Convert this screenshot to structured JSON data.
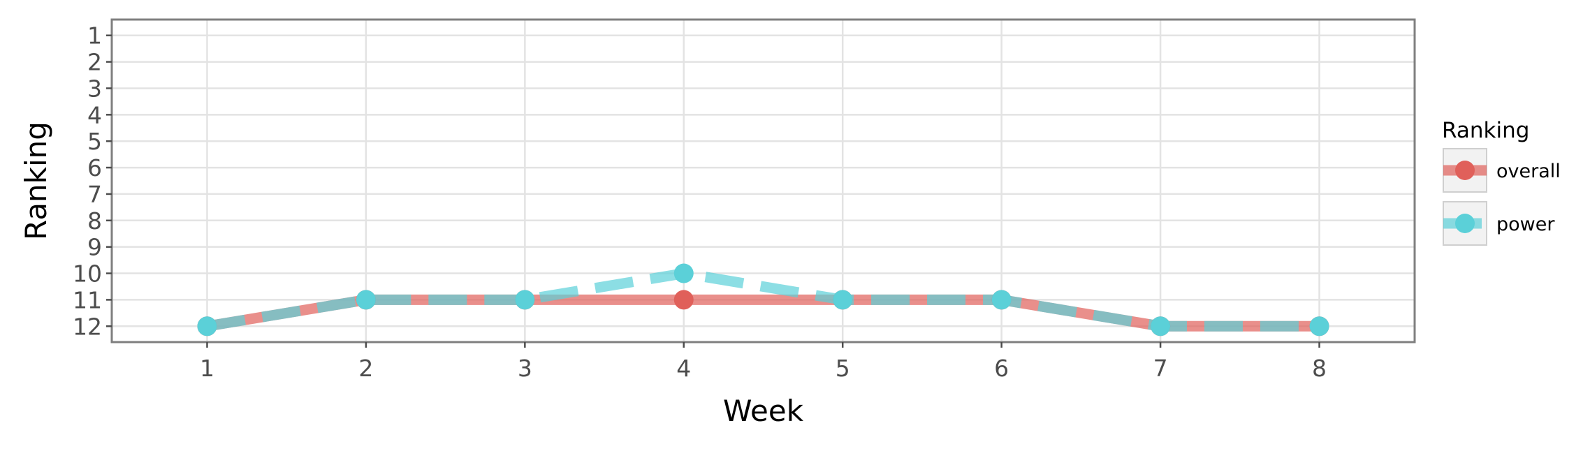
{
  "chart_data": {
    "type": "line",
    "title": "",
    "xlabel": "Week",
    "ylabel": "Ranking",
    "x": [
      1,
      2,
      3,
      4,
      5,
      6,
      7,
      8
    ],
    "xlim": [
      0.4,
      8.6
    ],
    "ylim": [
      12.6,
      0.4
    ],
    "y_reversed": true,
    "xticks": [
      "1",
      "2",
      "3",
      "4",
      "5",
      "6",
      "7",
      "8"
    ],
    "yticks": [
      "1",
      "2",
      "3",
      "4",
      "5",
      "6",
      "7",
      "8",
      "9",
      "10",
      "11",
      "12"
    ],
    "grid": true,
    "legend": {
      "title": "Ranking",
      "position": "right"
    },
    "series": [
      {
        "name": "overall",
        "color": "#e0605a",
        "style": "solid",
        "values": [
          12,
          11,
          11,
          11,
          11,
          11,
          12,
          12
        ]
      },
      {
        "name": "power",
        "color": "#5bd0d8",
        "style": "dashed",
        "values": [
          12,
          11,
          11,
          10,
          11,
          11,
          12,
          12
        ]
      }
    ]
  }
}
